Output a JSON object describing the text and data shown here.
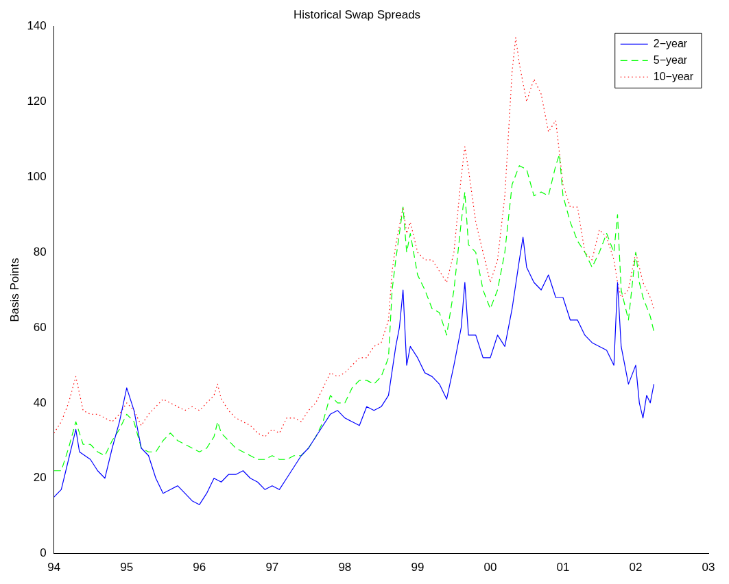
{
  "chart_data": {
    "type": "line",
    "title": "Historical Swap Spreads",
    "ylabel": "Basis Points",
    "legend": "top right",
    "grid": false,
    "xlim": [
      1994,
      2003
    ],
    "xticks": [
      {
        "value": 1994,
        "label": "94"
      },
      {
        "value": 1995,
        "label": "95"
      },
      {
        "value": 1996,
        "label": "96"
      },
      {
        "value": 1997,
        "label": "97"
      },
      {
        "value": 1998,
        "label": "98"
      },
      {
        "value": 1999,
        "label": "99"
      },
      {
        "value": 2000,
        "label": "00"
      },
      {
        "value": 2001,
        "label": "01"
      },
      {
        "value": 2002,
        "label": "02"
      },
      {
        "value": 2003,
        "label": "03"
      }
    ],
    "ylim": [
      0,
      140
    ],
    "yticks": [
      0,
      20,
      40,
      60,
      80,
      100,
      120,
      140
    ],
    "series": [
      {
        "name": "2−year",
        "color": "#0000ff",
        "line_style": "solid",
        "x": [
          1994.0,
          1994.1,
          1994.2,
          1994.3,
          1994.35,
          1994.5,
          1994.6,
          1994.7,
          1994.8,
          1994.9,
          1995.0,
          1995.1,
          1995.2,
          1995.3,
          1995.4,
          1995.5,
          1995.6,
          1995.7,
          1995.8,
          1995.9,
          1996.0,
          1996.1,
          1996.2,
          1996.3,
          1996.4,
          1996.5,
          1996.6,
          1996.7,
          1996.8,
          1996.9,
          1997.0,
          1997.1,
          1997.2,
          1997.3,
          1997.4,
          1997.5,
          1997.6,
          1997.7,
          1997.8,
          1997.9,
          1998.0,
          1998.1,
          1998.2,
          1998.3,
          1998.4,
          1998.5,
          1998.6,
          1998.7,
          1998.75,
          1998.8,
          1998.85,
          1998.9,
          1999.0,
          1999.1,
          1999.2,
          1999.3,
          1999.4,
          1999.5,
          1999.6,
          1999.65,
          1999.7,
          1999.8,
          1999.9,
          2000.0,
          2000.1,
          2000.2,
          2000.3,
          2000.4,
          2000.45,
          2000.5,
          2000.6,
          2000.7,
          2000.8,
          2000.9,
          2001.0,
          2001.1,
          2001.2,
          2001.3,
          2001.4,
          2001.5,
          2001.6,
          2001.7,
          2001.75,
          2001.8,
          2001.9,
          2002.0,
          2002.05,
          2002.1,
          2002.15,
          2002.2,
          2002.25
        ],
        "values": [
          15,
          17,
          25,
          33,
          27,
          25,
          22,
          20,
          28,
          35,
          44,
          38,
          28,
          26,
          20,
          16,
          17,
          18,
          16,
          14,
          13,
          16,
          20,
          19,
          21,
          21,
          22,
          20,
          19,
          17,
          18,
          17,
          20,
          23,
          26,
          28,
          31,
          34,
          37,
          38,
          36,
          35,
          34,
          39,
          38,
          39,
          42,
          55,
          60,
          70,
          50,
          55,
          52,
          48,
          47,
          45,
          41,
          50,
          60,
          72,
          58,
          58,
          52,
          52,
          58,
          55,
          65,
          78,
          84,
          76,
          72,
          70,
          74,
          68,
          68,
          62,
          62,
          58,
          56,
          55,
          54,
          50,
          72,
          55,
          45,
          50,
          40,
          36,
          42,
          40,
          45
        ]
      },
      {
        "name": "5−year",
        "color": "#00ff00",
        "line_style": "dashed",
        "x": [
          1994.0,
          1994.1,
          1994.2,
          1994.3,
          1994.4,
          1994.5,
          1994.6,
          1994.7,
          1994.8,
          1994.9,
          1995.0,
          1995.1,
          1995.2,
          1995.3,
          1995.4,
          1995.5,
          1995.6,
          1995.7,
          1995.8,
          1995.9,
          1996.0,
          1996.1,
          1996.2,
          1996.25,
          1996.3,
          1996.4,
          1996.5,
          1996.6,
          1996.7,
          1996.8,
          1996.9,
          1997.0,
          1997.1,
          1997.2,
          1997.3,
          1997.4,
          1997.5,
          1997.6,
          1997.7,
          1997.8,
          1997.9,
          1998.0,
          1998.1,
          1998.2,
          1998.3,
          1998.4,
          1998.5,
          1998.6,
          1998.65,
          1998.7,
          1998.8,
          1998.85,
          1998.9,
          1999.0,
          1999.1,
          1999.2,
          1999.3,
          1999.4,
          1999.5,
          1999.6,
          1999.65,
          1999.7,
          1999.8,
          1999.9,
          2000.0,
          2000.1,
          2000.2,
          2000.3,
          2000.4,
          2000.5,
          2000.6,
          2000.7,
          2000.8,
          2000.9,
          2000.95,
          2001.0,
          2001.1,
          2001.2,
          2001.3,
          2001.4,
          2001.5,
          2001.6,
          2001.7,
          2001.75,
          2001.8,
          2001.9,
          2002.0,
          2002.05,
          2002.1,
          2002.2,
          2002.25
        ],
        "values": [
          22,
          22,
          28,
          35,
          29,
          29,
          27,
          26,
          30,
          33,
          37,
          35,
          28,
          27,
          27,
          30,
          32,
          30,
          29,
          28,
          27,
          28,
          31,
          35,
          32,
          30,
          28,
          27,
          26,
          25,
          25,
          26,
          25,
          25,
          26,
          26,
          28,
          31,
          35,
          42,
          40,
          40,
          44,
          46,
          46,
          45,
          47,
          52,
          70,
          78,
          92,
          80,
          85,
          74,
          70,
          65,
          64,
          58,
          70,
          88,
          96,
          82,
          80,
          70,
          65,
          70,
          80,
          98,
          103,
          102,
          95,
          96,
          95,
          103,
          106,
          95,
          88,
          83,
          80,
          76,
          80,
          85,
          80,
          90,
          70,
          62,
          80,
          72,
          68,
          63,
          59
        ]
      },
      {
        "name": "10−year",
        "color": "#ff0000",
        "line_style": "dotted",
        "x": [
          1994.0,
          1994.1,
          1994.2,
          1994.3,
          1994.4,
          1994.5,
          1994.6,
          1994.7,
          1994.8,
          1994.9,
          1995.0,
          1995.1,
          1995.2,
          1995.3,
          1995.4,
          1995.5,
          1995.6,
          1995.7,
          1995.8,
          1995.9,
          1996.0,
          1996.1,
          1996.2,
          1996.25,
          1996.3,
          1996.4,
          1996.5,
          1996.6,
          1996.7,
          1996.8,
          1996.9,
          1997.0,
          1997.1,
          1997.2,
          1997.3,
          1997.4,
          1997.5,
          1997.6,
          1997.7,
          1997.8,
          1997.9,
          1998.0,
          1998.1,
          1998.2,
          1998.3,
          1998.4,
          1998.5,
          1998.6,
          1998.65,
          1998.7,
          1998.8,
          1998.85,
          1998.9,
          1999.0,
          1999.1,
          1999.2,
          1999.3,
          1999.4,
          1999.5,
          1999.6,
          1999.65,
          1999.7,
          1999.8,
          1999.9,
          2000.0,
          2000.1,
          2000.2,
          2000.3,
          2000.35,
          2000.4,
          2000.5,
          2000.6,
          2000.7,
          2000.8,
          2000.9,
          2001.0,
          2001.1,
          2001.2,
          2001.3,
          2001.4,
          2001.5,
          2001.6,
          2001.7,
          2001.75,
          2001.8,
          2001.9,
          2002.0,
          2002.1,
          2002.2,
          2002.25
        ],
        "values": [
          32,
          35,
          40,
          47,
          38,
          37,
          37,
          36,
          35,
          37,
          40,
          38,
          34,
          37,
          39,
          41,
          40,
          39,
          38,
          39,
          38,
          40,
          42,
          45,
          41,
          38,
          36,
          35,
          34,
          32,
          31,
          33,
          32,
          36,
          36,
          35,
          38,
          40,
          44,
          48,
          47,
          48,
          50,
          52,
          52,
          55,
          56,
          62,
          75,
          82,
          92,
          85,
          88,
          80,
          78,
          78,
          75,
          72,
          80,
          100,
          108,
          102,
          88,
          80,
          72,
          78,
          95,
          128,
          137,
          130,
          120,
          126,
          122,
          112,
          115,
          98,
          92,
          92,
          80,
          78,
          86,
          84,
          78,
          72,
          68,
          70,
          80,
          72,
          68,
          65
        ]
      }
    ]
  }
}
